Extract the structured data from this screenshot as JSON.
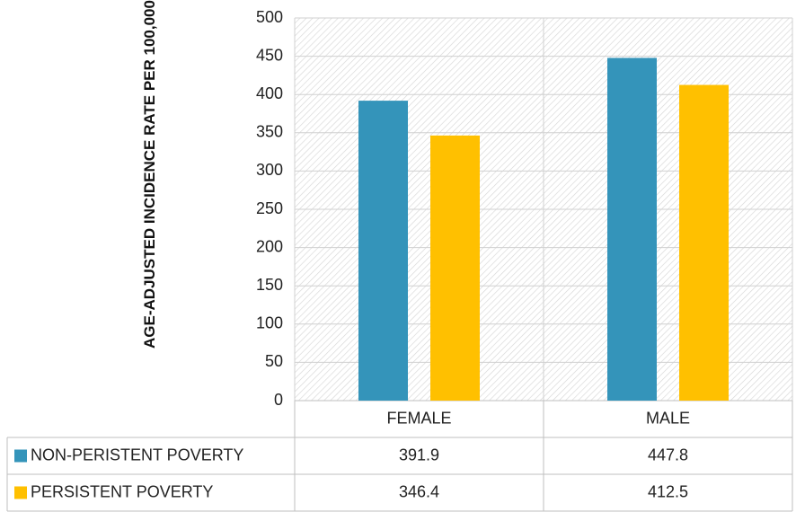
{
  "chart_data": {
    "type": "bar",
    "y_label": "AGE-ADJUSTED INCIDENCE RATE PER 100,000",
    "categories": [
      "FEMALE",
      "MALE"
    ],
    "series": [
      {
        "name": "NON-PERISTENT POVERTY",
        "color": "#3494ba",
        "values": [
          391.9,
          447.8
        ]
      },
      {
        "name": "PERSISTENT POVERTY",
        "color": "#ffc000",
        "values": [
          346.4,
          412.5
        ]
      }
    ],
    "ylim": [
      0,
      500
    ],
    "yticks": [
      0,
      50,
      100,
      150,
      200,
      250,
      300,
      350,
      400,
      450,
      500
    ],
    "grid": true,
    "data_table": true
  }
}
